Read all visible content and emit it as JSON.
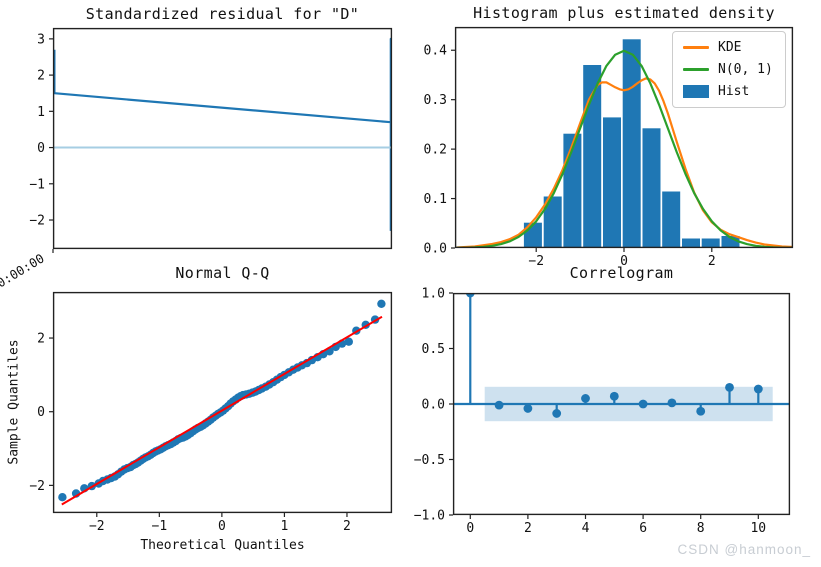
{
  "watermark": {
    "text": "CSDN @hanmoon_",
    "color": "#c8cdd3"
  },
  "background": "#ffffff",
  "chart_data": [
    {
      "type": "line",
      "title": "Standardized residual for \"D\"",
      "xlim": [
        0,
        1
      ],
      "ylim": [
        -2.8,
        3.3
      ],
      "yticks": [
        3,
        2,
        1,
        0,
        -1,
        -2
      ],
      "ytick_labels": [
        "3",
        "2",
        "1",
        "0",
        "−1",
        "−2"
      ],
      "xticks": [
        0
      ],
      "xtick_labels": [
        ""
      ],
      "x_tick_label": "0:00:00",
      "series": [
        {
          "name": "standardized residual",
          "color": "#1f77b4",
          "width": 2.2,
          "points": [
            [
              0.004,
              2.7
            ],
            [
              0.004,
              1.5
            ],
            [
              0.9965,
              0.7
            ],
            [
              0.9965,
              3.0
            ],
            [
              0.9965,
              -2.3
            ]
          ]
        }
      ],
      "zero_line": {
        "y": 0,
        "color": "#a6cee3",
        "width": 2
      }
    },
    {
      "type": "histogram+lines",
      "title": "Histogram plus estimated density",
      "xlim": [
        -3.85,
        3.85
      ],
      "ylim": [
        0,
        0.447
      ],
      "xticks": [
        -2,
        0,
        2
      ],
      "xtick_labels": [
        "−2",
        "0",
        "2"
      ],
      "yticks": [
        0.0,
        0.1,
        0.2,
        0.3,
        0.4
      ],
      "ytick_labels": [
        "0.0",
        "0.1",
        "0.2",
        "0.3",
        "0.4"
      ],
      "bars": {
        "color": "#1f77b4",
        "bin_start": -2.3,
        "bin_width": 0.45,
        "heights": [
          0.052,
          0.105,
          0.232,
          0.371,
          0.265,
          0.423,
          0.243,
          0.115,
          0.02,
          0.02,
          0.025
        ]
      },
      "lines": [
        {
          "name": "KDE",
          "color": "#ff7f0e",
          "width": 2.2,
          "points": [
            [
              -3.8,
              0.001
            ],
            [
              -3.4,
              0.003
            ],
            [
              -3.0,
              0.008
            ],
            [
              -2.8,
              0.012
            ],
            [
              -2.6,
              0.018
            ],
            [
              -2.4,
              0.027
            ],
            [
              -2.2,
              0.042
            ],
            [
              -2.0,
              0.062
            ],
            [
              -1.8,
              0.088
            ],
            [
              -1.6,
              0.12
            ],
            [
              -1.4,
              0.158
            ],
            [
              -1.2,
              0.203
            ],
            [
              -1.0,
              0.252
            ],
            [
              -0.8,
              0.3
            ],
            [
              -0.6,
              0.33
            ],
            [
              -0.5,
              0.335
            ],
            [
              -0.4,
              0.335
            ],
            [
              -0.3,
              0.33
            ],
            [
              -0.2,
              0.325
            ],
            [
              -0.1,
              0.321
            ],
            [
              0.0,
              0.319
            ],
            [
              0.1,
              0.321
            ],
            [
              0.2,
              0.326
            ],
            [
              0.3,
              0.333
            ],
            [
              0.4,
              0.339
            ],
            [
              0.5,
              0.343
            ],
            [
              0.6,
              0.341
            ],
            [
              0.7,
              0.333
            ],
            [
              0.8,
              0.318
            ],
            [
              0.9,
              0.297
            ],
            [
              1.0,
              0.272
            ],
            [
              1.2,
              0.215
            ],
            [
              1.4,
              0.16
            ],
            [
              1.6,
              0.112
            ],
            [
              1.8,
              0.076
            ],
            [
              2.0,
              0.052
            ],
            [
              2.2,
              0.037
            ],
            [
              2.4,
              0.028
            ],
            [
              2.6,
              0.022
            ],
            [
              2.8,
              0.016
            ],
            [
              3.0,
              0.011
            ],
            [
              3.2,
              0.007
            ],
            [
              3.4,
              0.005
            ],
            [
              3.6,
              0.003
            ],
            [
              3.85,
              0.002
            ]
          ]
        },
        {
          "name": "N(0, 1)",
          "color": "#2ca02c",
          "width": 2.2,
          "points": [
            [
              -3.85,
              0.0003
            ],
            [
              -3.6,
              0.0006
            ],
            [
              -3.4,
              0.0012
            ],
            [
              -3.2,
              0.0024
            ],
            [
              -3.0,
              0.0044
            ],
            [
              -2.8,
              0.0079
            ],
            [
              -2.6,
              0.0136
            ],
            [
              -2.4,
              0.0224
            ],
            [
              -2.2,
              0.0355
            ],
            [
              -2.0,
              0.054
            ],
            [
              -1.8,
              0.079
            ],
            [
              -1.6,
              0.1109
            ],
            [
              -1.4,
              0.1497
            ],
            [
              -1.2,
              0.1942
            ],
            [
              -1.0,
              0.242
            ],
            [
              -0.8,
              0.2897
            ],
            [
              -0.6,
              0.3332
            ],
            [
              -0.4,
              0.3683
            ],
            [
              -0.2,
              0.391
            ],
            [
              0.0,
              0.3989
            ],
            [
              0.2,
              0.391
            ],
            [
              0.4,
              0.3683
            ],
            [
              0.6,
              0.3332
            ],
            [
              0.8,
              0.2897
            ],
            [
              1.0,
              0.242
            ],
            [
              1.2,
              0.1942
            ],
            [
              1.4,
              0.1497
            ],
            [
              1.6,
              0.1109
            ],
            [
              1.8,
              0.079
            ],
            [
              2.0,
              0.054
            ],
            [
              2.2,
              0.0355
            ],
            [
              2.4,
              0.0224
            ],
            [
              2.6,
              0.0136
            ],
            [
              2.8,
              0.0079
            ],
            [
              3.0,
              0.0044
            ],
            [
              3.2,
              0.0024
            ],
            [
              3.4,
              0.0012
            ],
            [
              3.6,
              0.0006
            ],
            [
              3.85,
              0.0003
            ]
          ]
        }
      ],
      "legend": [
        {
          "label": "KDE",
          "type": "line",
          "color": "#ff7f0e"
        },
        {
          "label": "N(0, 1)",
          "type": "line",
          "color": "#2ca02c"
        },
        {
          "label": "Hist",
          "type": "patch",
          "color": "#1f77b4"
        }
      ]
    },
    {
      "type": "scatter",
      "title": "Normal Q-Q",
      "xlabel": "Theoretical Quantiles",
      "ylabel": "Sample Quantiles",
      "xlim": [
        -2.7,
        2.72
      ],
      "ylim": [
        -2.75,
        3.25
      ],
      "xticks": [
        -2,
        -1,
        0,
        1,
        2
      ],
      "xtick_labels": [
        "−2",
        "−1",
        "0",
        "1",
        "2"
      ],
      "yticks": [
        -2,
        0,
        2
      ],
      "ytick_labels": [
        "−2",
        "0",
        "2"
      ],
      "marker": {
        "color": "#1f77b4",
        "radius": 4.2
      },
      "points": [
        [
          -2.55,
          -2.32
        ],
        [
          -2.33,
          -2.22
        ],
        [
          -2.2,
          -2.08
        ],
        [
          -2.08,
          -2.02
        ],
        [
          -1.97,
          -1.95
        ],
        [
          -1.9,
          -1.88
        ],
        [
          -1.83,
          -1.84
        ],
        [
          -1.77,
          -1.8
        ],
        [
          -1.71,
          -1.76
        ],
        [
          -1.66,
          -1.7
        ],
        [
          -1.61,
          -1.63
        ],
        [
          -1.56,
          -1.57
        ],
        [
          -1.51,
          -1.53
        ],
        [
          -1.46,
          -1.5
        ],
        [
          -1.42,
          -1.45
        ],
        [
          -1.38,
          -1.42
        ],
        [
          -1.34,
          -1.38
        ],
        [
          -1.3,
          -1.33
        ],
        [
          -1.26,
          -1.28
        ],
        [
          -1.22,
          -1.24
        ],
        [
          -1.18,
          -1.21
        ],
        [
          -1.14,
          -1.17
        ],
        [
          -1.1,
          -1.12
        ],
        [
          -1.06,
          -1.08
        ],
        [
          -1.02,
          -1.05
        ],
        [
          -0.98,
          -1.02
        ],
        [
          -0.94,
          -0.98
        ],
        [
          -0.9,
          -0.94
        ],
        [
          -0.86,
          -0.91
        ],
        [
          -0.82,
          -0.88
        ],
        [
          -0.78,
          -0.84
        ],
        [
          -0.74,
          -0.8
        ],
        [
          -0.7,
          -0.75
        ],
        [
          -0.66,
          -0.72
        ],
        [
          -0.62,
          -0.7
        ],
        [
          -0.58,
          -0.67
        ],
        [
          -0.54,
          -0.63
        ],
        [
          -0.5,
          -0.58
        ],
        [
          -0.46,
          -0.53
        ],
        [
          -0.42,
          -0.48
        ],
        [
          -0.38,
          -0.44
        ],
        [
          -0.34,
          -0.41
        ],
        [
          -0.3,
          -0.37
        ],
        [
          -0.26,
          -0.32
        ],
        [
          -0.22,
          -0.27
        ],
        [
          -0.18,
          -0.22
        ],
        [
          -0.14,
          -0.16
        ],
        [
          -0.1,
          -0.11
        ],
        [
          -0.06,
          -0.06
        ],
        [
          -0.02,
          -0.02
        ],
        [
          0.02,
          0.03
        ],
        [
          0.06,
          0.09
        ],
        [
          0.1,
          0.15
        ],
        [
          0.14,
          0.22
        ],
        [
          0.18,
          0.28
        ],
        [
          0.22,
          0.33
        ],
        [
          0.26,
          0.38
        ],
        [
          0.3,
          0.42
        ],
        [
          0.34,
          0.45
        ],
        [
          0.39,
          0.47
        ],
        [
          0.44,
          0.49
        ],
        [
          0.49,
          0.52
        ],
        [
          0.54,
          0.55
        ],
        [
          0.59,
          0.59
        ],
        [
          0.64,
          0.63
        ],
        [
          0.7,
          0.68
        ],
        [
          0.76,
          0.74
        ],
        [
          0.82,
          0.8
        ],
        [
          0.88,
          0.87
        ],
        [
          0.94,
          0.94
        ],
        [
          1.0,
          1.0
        ],
        [
          1.07,
          1.07
        ],
        [
          1.14,
          1.14
        ],
        [
          1.21,
          1.2
        ],
        [
          1.28,
          1.26
        ],
        [
          1.36,
          1.32
        ],
        [
          1.44,
          1.4
        ],
        [
          1.53,
          1.48
        ],
        [
          1.62,
          1.56
        ],
        [
          1.72,
          1.64
        ],
        [
          1.82,
          1.76
        ],
        [
          1.92,
          1.85
        ],
        [
          2.03,
          1.9
        ],
        [
          2.15,
          2.2
        ],
        [
          2.3,
          2.36
        ],
        [
          2.45,
          2.5
        ],
        [
          2.55,
          2.93
        ]
      ],
      "line45": {
        "color": "#ff0000",
        "width": 2,
        "points": [
          [
            -2.56,
            -2.52
          ],
          [
            2.56,
            2.58
          ]
        ]
      }
    },
    {
      "type": "stem",
      "title": "Correlogram",
      "xlim": [
        -0.6,
        11.1
      ],
      "ylim": [
        -1.0,
        1.0
      ],
      "xticks": [
        0,
        2,
        4,
        6,
        8,
        10
      ],
      "xtick_labels": [
        "0",
        "2",
        "4",
        "6",
        "8",
        "10"
      ],
      "yticks": [
        1.0,
        0.5,
        0.0,
        -0.5,
        -1.0
      ],
      "ytick_labels": [
        "1.0",
        "0.5",
        "0.0",
        "−0.5",
        "−1.0"
      ],
      "conf_band": {
        "x0": 0.5,
        "x1": 10.5,
        "y": 0.155,
        "color": "#1f77b4",
        "opacity": 0.22
      },
      "zero_line": {
        "color": "#1f77b4",
        "width": 2.2
      },
      "stems": {
        "color": "#1f77b4",
        "marker_radius": 4.4,
        "lags": [
          0,
          1,
          2,
          3,
          4,
          5,
          6,
          7,
          8,
          9,
          10
        ],
        "values": [
          1.0,
          -0.01,
          -0.04,
          -0.085,
          0.05,
          0.07,
          0.0,
          0.01,
          -0.065,
          0.15,
          0.135
        ]
      }
    }
  ]
}
